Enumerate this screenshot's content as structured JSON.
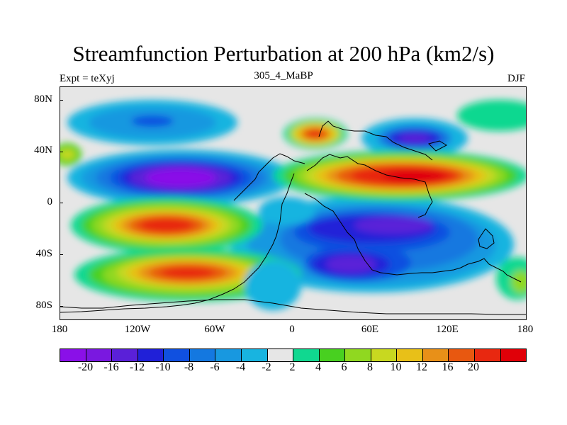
{
  "title": "Streamfunction Perturbation at 200 hPa (km2/s)",
  "left_string": "Expt = teXyj",
  "center_string": "305_4_MaBP",
  "right_string": "DJF",
  "lat_ticks": [
    "80N",
    "40N",
    "0",
    "40S",
    "80S"
  ],
  "lon_ticks": [
    "180",
    "120W",
    "60W",
    "0",
    "60E",
    "120E",
    "180"
  ],
  "colorbar": {
    "colors": [
      "#8a10e8",
      "#7a18e0",
      "#5a20d8",
      "#2020d8",
      "#1050e0",
      "#1478e0",
      "#1898e0",
      "#18b4e0",
      "#e6e6e6",
      "#10d890",
      "#48d020",
      "#90d820",
      "#c8d820",
      "#e8c018",
      "#e89018",
      "#e85810",
      "#e82810",
      "#e00008"
    ],
    "labels": [
      "-20",
      "-16",
      "-12",
      "-10",
      "-8",
      "-6",
      "-4",
      "-2",
      "2",
      "4",
      "6",
      "8",
      "10",
      "12",
      "16",
      "20"
    ]
  },
  "chart_data": {
    "type": "heatmap",
    "field": "200 hPa streamfunction perturbation",
    "units": "km2/s",
    "lon_range": [
      -180,
      180
    ],
    "lat_range": [
      -90,
      90
    ],
    "contour_levels": [
      -20,
      -16,
      -12,
      -10,
      -8,
      -6,
      -4,
      -2,
      2,
      4,
      6,
      8,
      10,
      12,
      16,
      20
    ],
    "features": [
      {
        "lon": -100,
        "lat": 20,
        "value": -20
      },
      {
        "lon": -115,
        "lat": 63,
        "value": -6
      },
      {
        "lon": 95,
        "lat": 48,
        "value": -12
      },
      {
        "lon": 105,
        "lat": -25,
        "value": -14
      },
      {
        "lon": 40,
        "lat": -43,
        "value": -14
      },
      {
        "lon": -105,
        "lat": -17,
        "value": 20
      },
      {
        "lon": -85,
        "lat": -55,
        "value": 18
      },
      {
        "lon": 20,
        "lat": 55,
        "value": 16
      },
      {
        "lon": 80,
        "lat": 23,
        "value": 20
      },
      {
        "lon": 175,
        "lat": -65,
        "value": 6
      }
    ]
  }
}
